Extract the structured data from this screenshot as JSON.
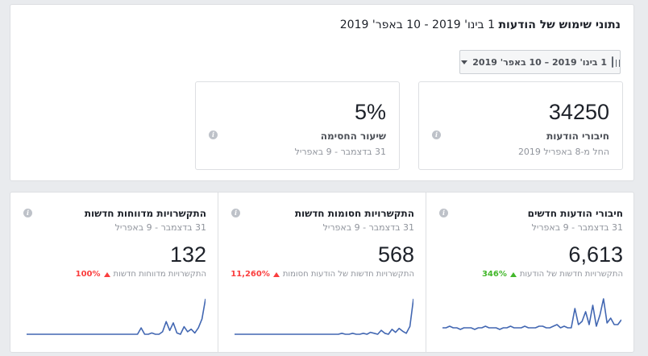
{
  "header": {
    "title_strong": "נתוני שימוש של הודעות",
    "title_range": "1 בינו' 2019 - 10 באפר' 2019"
  },
  "date_picker": {
    "label": "1 בינו' 2019 – 10 באפר' 2019",
    "icon": "calendar-icon"
  },
  "summary": [
    {
      "value": "34250",
      "label": "חיבורי הודעות",
      "sub": "החל מ-8 באפריל 2019"
    },
    {
      "value": "5%",
      "label": "שיעור החסימה",
      "sub": "31 בדצמבר - 9 באפריל"
    }
  ],
  "metrics": [
    {
      "title": "חיבורי הודעות חדשים",
      "date": "31 בדצמבר - 9 באפריל",
      "value": "6,613",
      "change_label": "התקשרויות חדשות של הודעות",
      "change_pct": "346%",
      "change_color": "#42b72a",
      "spark": [
        4,
        4,
        5,
        4,
        4,
        3,
        4,
        4,
        4,
        3,
        4,
        4,
        5,
        4,
        4,
        4,
        3,
        4,
        4,
        5,
        4,
        4,
        4,
        5,
        4,
        4,
        4,
        5,
        5,
        4,
        4,
        5,
        6,
        4,
        5,
        4,
        4,
        16,
        6,
        8,
        14,
        6,
        18,
        5,
        12,
        22,
        7,
        10,
        6,
        6,
        9
      ]
    },
    {
      "title": "התקשרויות חסומות חדשות",
      "date": "31 בדצמבר - 9 באפריל",
      "value": "568",
      "change_label": "התקשרויות חדשות של הודעות חסומות",
      "change_pct": "11,260%",
      "change_color": "#fa3e3e",
      "spark": [
        0,
        0,
        0,
        0,
        0,
        0,
        0,
        0,
        0,
        0,
        0,
        0,
        0,
        0,
        0,
        0,
        0,
        0,
        0,
        0,
        0,
        0,
        0,
        0,
        0,
        0,
        0,
        0,
        0,
        0,
        1,
        0,
        0,
        1,
        0,
        0,
        1,
        0,
        2,
        1,
        0,
        4,
        1,
        0,
        5,
        2,
        6,
        3,
        1,
        8,
        36
      ]
    },
    {
      "title": "התקשרויות מדווחות חדשות",
      "date": "31 בדצמבר - 9 באפריל",
      "value": "132",
      "change_label": "התקשרויות מדווחות חדשות",
      "change_pct": "100%",
      "change_color": "#fa3e3e",
      "spark": [
        0,
        0,
        0,
        0,
        0,
        0,
        0,
        0,
        0,
        0,
        0,
        0,
        0,
        0,
        0,
        0,
        0,
        0,
        0,
        0,
        0,
        0,
        0,
        0,
        0,
        0,
        0,
        0,
        0,
        0,
        0,
        0,
        5,
        0,
        0,
        1,
        0,
        0,
        2,
        10,
        3,
        9,
        1,
        0,
        6,
        2,
        4,
        1,
        5,
        12,
        28
      ]
    }
  ],
  "colors": {
    "spark_line": "#4267b2"
  }
}
